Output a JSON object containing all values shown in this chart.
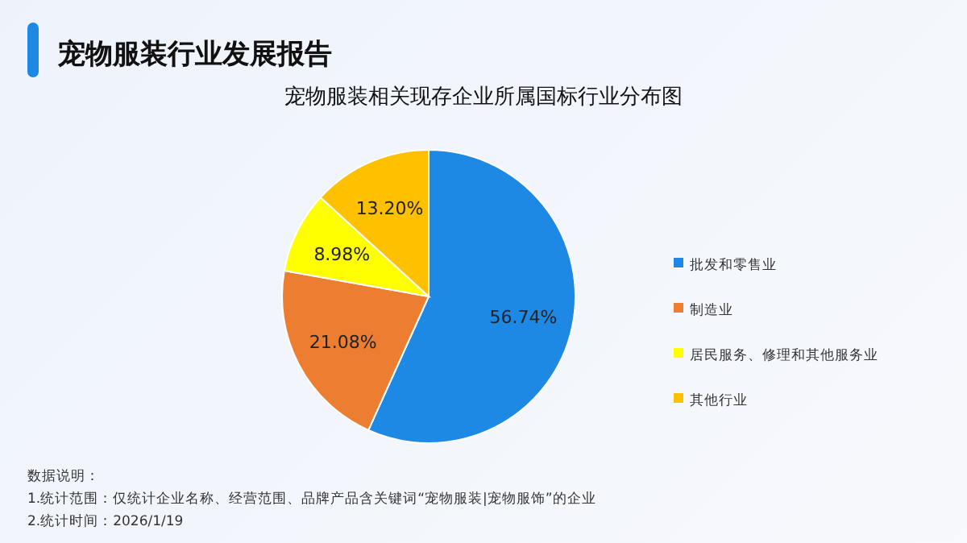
{
  "chart_data": {
    "type": "pie",
    "title": "宠物服装行业发展报告",
    "subtitle": "宠物服装相关现存企业所属国标行业分布图",
    "categories": [
      "批发和零售业",
      "制造业",
      "居民服务、修理和其他服务业",
      "其他行业"
    ],
    "values": [
      56.74,
      21.08,
      8.98,
      13.2
    ],
    "colors": [
      "#1e88e5",
      "#ed7d31",
      "#ffff00",
      "#ffc000"
    ],
    "value_labels": [
      "56.74%",
      "21.08%",
      "8.98%",
      "13.20%"
    ],
    "legend": "right",
    "annotations": [
      "数据说明：",
      "1.统计范围：仅统计企业名称、经营范围、品牌产品含关键词“宠物服装|宠物服饰”的企业",
      "2.统计时间：2026/1/19"
    ]
  }
}
